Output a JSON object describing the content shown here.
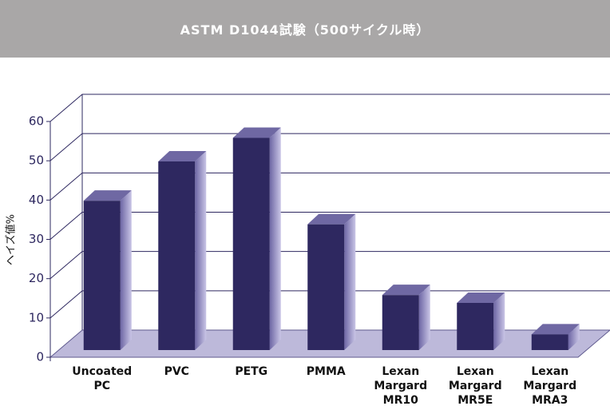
{
  "chart_data": {
    "type": "bar3d",
    "title": "ASTM D1044試験（500サイクル時）",
    "y_label": "ヘイズ値%",
    "categories": [
      "Uncoated PC",
      "PVC",
      "PETG",
      "PMMA",
      "Lexan Margard MR10",
      "Lexan Margard MR5E",
      "Lexan Margard MRA3"
    ],
    "values": [
      38,
      48,
      54,
      32,
      14,
      12,
      4
    ],
    "color": "#2e2860",
    "ylim": [
      0,
      60
    ],
    "yticks": [
      0,
      10,
      20,
      30,
      40,
      50,
      60
    ],
    "grid": true
  }
}
